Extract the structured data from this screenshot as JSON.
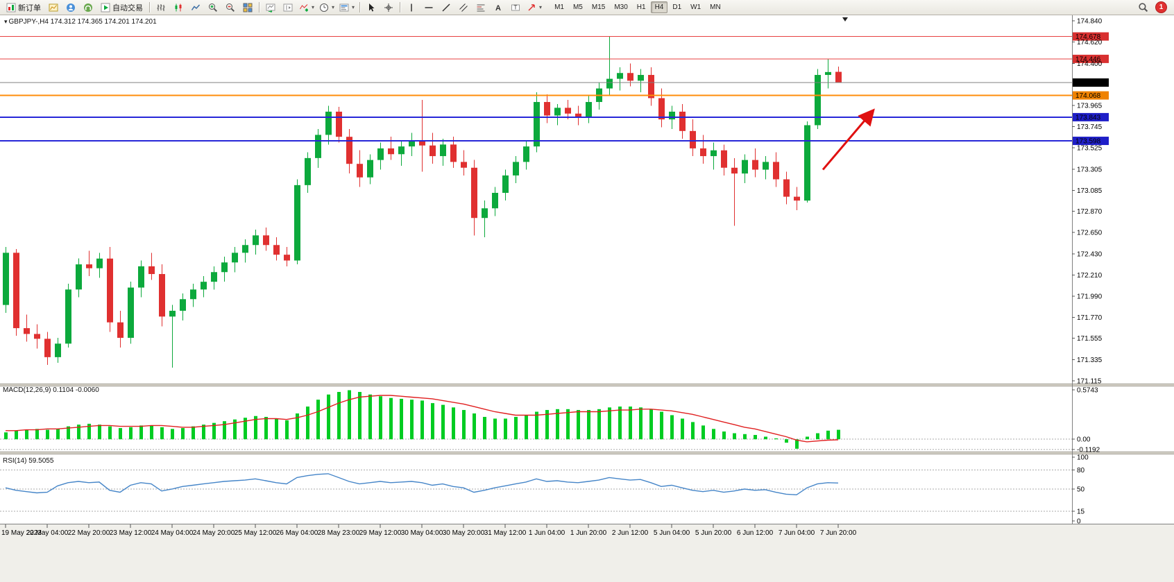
{
  "toolbar": {
    "new_order_label": "新订单",
    "autotrade_label": "自动交易",
    "timeframes": [
      "M1",
      "M5",
      "M15",
      "M30",
      "H1",
      "H4",
      "D1",
      "W1",
      "MN"
    ],
    "active_timeframe": "H4",
    "notification_count": "1",
    "icons": [
      "new-order-icon",
      "new-chart-icon",
      "profile-icon",
      "community-icon",
      "autotrade-icon",
      "bars-chart-icon",
      "candlestick-chart-icon",
      "line-chart-icon",
      "zoom-in-icon",
      "zoom-out-icon",
      "tile-windows-icon",
      "auto-scroll-icon",
      "chart-shift-icon",
      "indicators-icon",
      "periods-icon",
      "templates-icon",
      "cursor-icon",
      "crosshair-icon",
      "vertical-line-icon",
      "horizontal-line-icon",
      "trendline-icon",
      "channel-icon",
      "fibonacci-icon",
      "text-icon",
      "label-icon",
      "arrows-icon",
      "search-icon"
    ]
  },
  "chart_data": {
    "type": "candlestick",
    "symbol": "GBPJPY-,H4",
    "ohlc_line": "174.312 174.365 174.201 174.201",
    "colors": {
      "up": "#0ca93c",
      "down": "#e03030",
      "macd_hist": "#00cc22",
      "macd_signal": "#e02020",
      "rsi": "#4585c8",
      "grid": "#aaaaaa",
      "current_line": "#808080"
    },
    "price_axis": {
      "max": 174.84,
      "min": 171.115,
      "ticks": [
        "174.840",
        "174.620",
        "174.400",
        "173.965",
        "173.745",
        "173.525",
        "173.305",
        "173.085",
        "172.870",
        "172.650",
        "172.430",
        "172.210",
        "171.990",
        "171.770",
        "171.555",
        "171.335",
        "171.115"
      ]
    },
    "hlines": [
      {
        "value": 174.678,
        "label": "174.678",
        "line": "#e84040",
        "bg": "#d83030",
        "width": 1
      },
      {
        "value": 174.446,
        "label": "174.446",
        "line": "#e84040",
        "bg": "#d83030",
        "width": 1
      },
      {
        "value": 174.201,
        "label": "174.201",
        "line": "#808080",
        "bg": "#000000",
        "width": 1
      },
      {
        "value": 174.068,
        "label": "174.068",
        "line": "#ff8c0a",
        "bg": "#ef8200",
        "width": 2
      },
      {
        "value": 173.843,
        "label": "173.843",
        "line": "#2626d8",
        "bg": "#1f1fc8",
        "width": 2
      },
      {
        "value": 173.598,
        "label": "173.598",
        "line": "#2626d8",
        "bg": "#1f1fc8",
        "width": 2
      }
    ],
    "candles": [
      [
        171.9,
        172.5,
        171.82,
        172.44
      ],
      [
        172.44,
        172.48,
        171.58,
        171.66
      ],
      [
        171.66,
        171.8,
        171.52,
        171.6
      ],
      [
        171.6,
        171.7,
        171.45,
        171.55
      ],
      [
        171.55,
        171.62,
        171.28,
        171.36
      ],
      [
        171.36,
        171.56,
        171.3,
        171.5
      ],
      [
        171.5,
        172.12,
        171.46,
        172.06
      ],
      [
        172.06,
        172.38,
        171.98,
        172.32
      ],
      [
        172.32,
        172.46,
        172.2,
        172.28
      ],
      [
        172.28,
        172.44,
        172.18,
        172.38
      ],
      [
        172.38,
        172.5,
        171.62,
        171.72
      ],
      [
        171.72,
        171.84,
        171.46,
        171.56
      ],
      [
        171.56,
        172.14,
        171.5,
        172.08
      ],
      [
        172.08,
        172.36,
        171.98,
        172.3
      ],
      [
        172.3,
        172.44,
        172.16,
        172.22
      ],
      [
        172.22,
        172.32,
        171.68,
        171.78
      ],
      [
        171.78,
        171.9,
        171.25,
        171.84
      ],
      [
        171.84,
        172.02,
        171.74,
        171.96
      ],
      [
        171.96,
        172.12,
        171.88,
        172.06
      ],
      [
        172.06,
        172.2,
        171.98,
        172.14
      ],
      [
        172.14,
        172.3,
        172.06,
        172.24
      ],
      [
        172.24,
        172.4,
        172.14,
        172.34
      ],
      [
        172.34,
        172.5,
        172.24,
        172.44
      ],
      [
        172.44,
        172.58,
        172.34,
        172.52
      ],
      [
        172.52,
        172.68,
        172.42,
        172.62
      ],
      [
        172.62,
        172.7,
        172.46,
        172.52
      ],
      [
        172.52,
        172.6,
        172.36,
        172.42
      ],
      [
        172.42,
        172.5,
        172.3,
        172.36
      ],
      [
        172.36,
        173.2,
        172.32,
        173.14
      ],
      [
        173.14,
        173.48,
        173.06,
        173.42
      ],
      [
        173.42,
        173.72,
        173.32,
        173.66
      ],
      [
        173.66,
        173.96,
        173.56,
        173.9
      ],
      [
        173.9,
        173.95,
        173.58,
        173.64
      ],
      [
        173.64,
        173.72,
        173.26,
        173.36
      ],
      [
        173.36,
        173.5,
        173.12,
        173.22
      ],
      [
        173.22,
        173.46,
        173.15,
        173.4
      ],
      [
        173.4,
        173.58,
        173.3,
        173.52
      ],
      [
        173.52,
        173.64,
        173.4,
        173.46
      ],
      [
        173.46,
        173.6,
        173.34,
        173.54
      ],
      [
        173.54,
        173.68,
        173.44,
        173.6
      ],
      [
        173.6,
        174.02,
        173.28,
        173.55
      ],
      [
        173.55,
        173.68,
        173.36,
        173.44
      ],
      [
        173.44,
        173.62,
        173.34,
        173.56
      ],
      [
        173.56,
        173.64,
        173.32,
        173.38
      ],
      [
        173.38,
        173.5,
        173.24,
        173.32
      ],
      [
        173.32,
        173.4,
        172.62,
        172.8
      ],
      [
        172.8,
        172.98,
        172.6,
        172.9
      ],
      [
        172.9,
        173.12,
        172.82,
        173.06
      ],
      [
        173.06,
        173.3,
        172.98,
        173.24
      ],
      [
        173.24,
        173.44,
        173.16,
        173.38
      ],
      [
        173.38,
        173.6,
        173.3,
        173.54
      ],
      [
        173.54,
        174.1,
        173.48,
        174.0
      ],
      [
        174.0,
        174.08,
        173.78,
        173.86
      ],
      [
        173.86,
        173.98,
        173.76,
        173.94
      ],
      [
        173.94,
        174.02,
        173.82,
        173.88
      ],
      [
        173.88,
        173.96,
        173.76,
        173.84
      ],
      [
        173.84,
        174.06,
        173.78,
        174.0
      ],
      [
        174.0,
        174.2,
        173.92,
        174.14
      ],
      [
        174.14,
        174.68,
        174.06,
        174.24
      ],
      [
        174.24,
        174.36,
        174.12,
        174.3
      ],
      [
        174.3,
        174.4,
        174.16,
        174.22
      ],
      [
        174.22,
        174.34,
        174.1,
        174.28
      ],
      [
        174.28,
        174.36,
        173.96,
        174.04
      ],
      [
        174.04,
        174.14,
        173.74,
        173.82
      ],
      [
        173.82,
        173.96,
        173.72,
        173.9
      ],
      [
        173.9,
        173.98,
        173.62,
        173.7
      ],
      [
        173.7,
        173.82,
        173.44,
        173.52
      ],
      [
        173.52,
        173.66,
        173.36,
        173.44
      ],
      [
        173.44,
        173.58,
        173.3,
        173.5
      ],
      [
        173.5,
        173.56,
        173.24,
        173.32
      ],
      [
        173.32,
        173.42,
        172.72,
        173.26
      ],
      [
        173.26,
        173.46,
        173.16,
        173.4
      ],
      [
        173.4,
        173.52,
        173.22,
        173.3
      ],
      [
        173.3,
        173.44,
        173.2,
        173.38
      ],
      [
        173.38,
        173.48,
        173.12,
        173.2
      ],
      [
        173.2,
        173.28,
        172.94,
        173.02
      ],
      [
        173.02,
        173.12,
        172.88,
        172.98
      ],
      [
        172.98,
        173.8,
        172.96,
        173.76
      ],
      [
        173.76,
        174.34,
        173.72,
        174.28
      ],
      [
        174.28,
        174.45,
        174.14,
        174.31
      ],
      [
        174.312,
        174.365,
        174.201,
        174.201
      ]
    ],
    "time_labels": [
      "19 May 2023",
      "22 May 04:00",
      "22 May 20:00",
      "23 May 12:00",
      "24 May 04:00",
      "24 May 20:00",
      "25 May 12:00",
      "26 May 04:00",
      "28 May 23:00",
      "29 May 12:00",
      "30 May 04:00",
      "30 May 20:00",
      "31 May 12:00",
      "1 Jun 04:00",
      "1 Jun 20:00",
      "2 Jun 12:00",
      "5 Jun 04:00",
      "5 Jun 20:00",
      "6 Jun 12:00",
      "7 Jun 04:00",
      "7 Jun 20:00"
    ],
    "macd": {
      "title": "MACD(12,26,9)",
      "value_main": "0.1104",
      "value_signal": "-0.0060",
      "max": 0.5743,
      "min": -0.1192,
      "axis": [
        {
          "v": 0.5743,
          "t": "0.5743"
        },
        {
          "v": 0,
          "t": "0.00"
        },
        {
          "v": -0.1192,
          "t": "-0.1192"
        }
      ],
      "histogram": [
        0.08,
        0.1,
        0.11,
        0.12,
        0.11,
        0.12,
        0.15,
        0.17,
        0.18,
        0.17,
        0.15,
        0.13,
        0.14,
        0.16,
        0.16,
        0.14,
        0.12,
        0.13,
        0.15,
        0.17,
        0.19,
        0.21,
        0.23,
        0.25,
        0.27,
        0.26,
        0.24,
        0.22,
        0.3,
        0.38,
        0.46,
        0.52,
        0.55,
        0.57,
        0.55,
        0.52,
        0.5,
        0.48,
        0.47,
        0.46,
        0.45,
        0.42,
        0.4,
        0.37,
        0.34,
        0.3,
        0.26,
        0.24,
        0.24,
        0.26,
        0.28,
        0.32,
        0.34,
        0.35,
        0.35,
        0.34,
        0.34,
        0.35,
        0.37,
        0.38,
        0.38,
        0.37,
        0.35,
        0.32,
        0.28,
        0.24,
        0.2,
        0.16,
        0.12,
        0.09,
        0.07,
        0.06,
        0.05,
        0.03,
        0.01,
        -0.04,
        -0.11,
        0.03,
        0.07,
        0.1,
        0.11
      ],
      "signal": [
        0.1,
        0.1,
        0.11,
        0.11,
        0.12,
        0.12,
        0.13,
        0.14,
        0.15,
        0.16,
        0.16,
        0.15,
        0.15,
        0.15,
        0.16,
        0.16,
        0.15,
        0.14,
        0.14,
        0.15,
        0.16,
        0.17,
        0.19,
        0.21,
        0.23,
        0.24,
        0.24,
        0.23,
        0.25,
        0.28,
        0.32,
        0.37,
        0.42,
        0.46,
        0.49,
        0.5,
        0.51,
        0.51,
        0.5,
        0.49,
        0.48,
        0.47,
        0.45,
        0.43,
        0.41,
        0.38,
        0.35,
        0.32,
        0.3,
        0.28,
        0.28,
        0.28,
        0.29,
        0.3,
        0.31,
        0.32,
        0.32,
        0.32,
        0.33,
        0.34,
        0.34,
        0.35,
        0.35,
        0.34,
        0.33,
        0.31,
        0.29,
        0.26,
        0.23,
        0.2,
        0.17,
        0.14,
        0.12,
        0.09,
        0.06,
        0.03,
        -0.01,
        -0.03,
        -0.02,
        -0.01,
        -0.006
      ]
    },
    "rsi": {
      "title": "RSI(14)",
      "value": "59.5055",
      "max": 100,
      "min": 0,
      "axis": [
        {
          "v": 100,
          "t": "100"
        },
        {
          "v": 80,
          "t": "80"
        },
        {
          "v": 50,
          "t": "50"
        },
        {
          "v": 15,
          "t": "15"
        },
        {
          "v": 0,
          "t": "0"
        }
      ],
      "levels": [
        80,
        50,
        15
      ],
      "series": [
        52,
        48,
        46,
        44,
        45,
        55,
        60,
        62,
        60,
        61,
        48,
        45,
        56,
        60,
        58,
        47,
        50,
        54,
        56,
        58,
        60,
        62,
        63,
        64,
        66,
        63,
        60,
        58,
        68,
        71,
        73,
        74,
        68,
        62,
        58,
        60,
        62,
        60,
        61,
        62,
        60,
        56,
        58,
        54,
        52,
        45,
        48,
        52,
        55,
        58,
        61,
        66,
        62,
        63,
        61,
        60,
        62,
        64,
        68,
        66,
        64,
        65,
        60,
        54,
        56,
        52,
        48,
        46,
        48,
        45,
        47,
        50,
        48,
        49,
        45,
        42,
        41,
        52,
        58,
        60,
        59.5
      ]
    },
    "arrow": {
      "x_from": 1186,
      "price_from": 173.3,
      "x_to": 1257,
      "price_to": 173.9,
      "color": "#e01010"
    },
    "shift_marker_x": 1218
  }
}
